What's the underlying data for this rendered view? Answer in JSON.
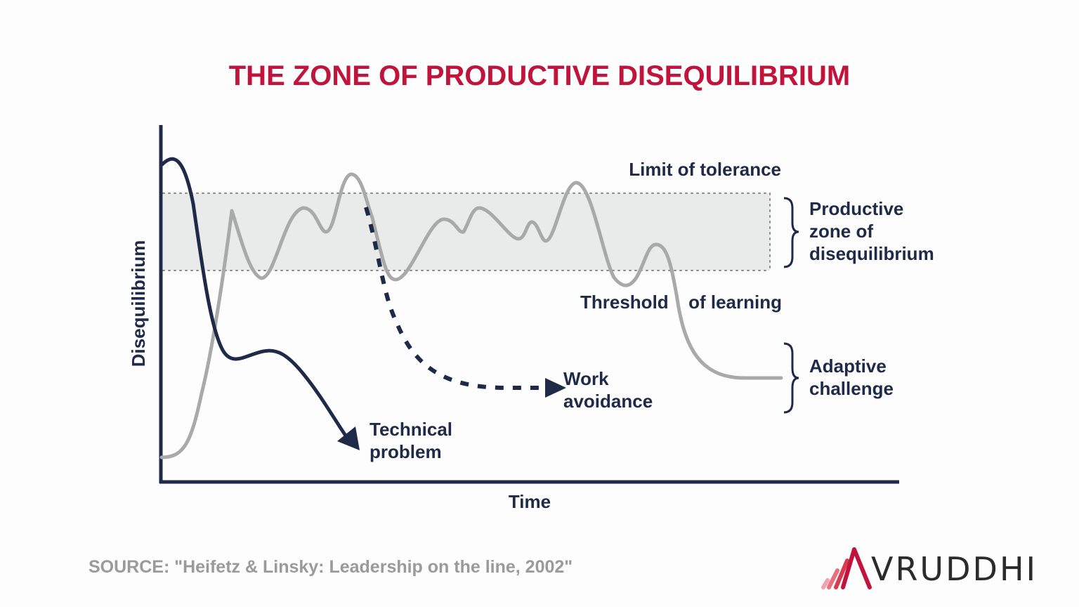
{
  "title": "THE ZONE OF PRODUCTIVE DISEQUILIBRIUM",
  "axes": {
    "y_label": "Disequilibrium",
    "x_label": "Time"
  },
  "labels": {
    "limit": "Limit of tolerance",
    "threshold_a": "Threshold",
    "threshold_b": "of learning",
    "zone": [
      "Productive",
      "zone of",
      "disequilibrium"
    ],
    "adaptive": [
      "Adaptive",
      "challenge"
    ],
    "work": [
      "Work",
      "avoidance"
    ],
    "technical": [
      "Technical",
      "problem"
    ]
  },
  "source": "SOURCE: \"Heifetz & Linsky: Leadership on the line, 2002\"",
  "brand": "VRUDDHI",
  "colors": {
    "title": "#c0143c",
    "navy": "#1e2a47",
    "gray_curve": "#a9a9a9",
    "zone_fill": "#e9ebea",
    "source": "#9a9a9a",
    "logo": [
      "#f0a3ad",
      "#e8707f",
      "#d83a50",
      "#c0143c"
    ]
  }
}
